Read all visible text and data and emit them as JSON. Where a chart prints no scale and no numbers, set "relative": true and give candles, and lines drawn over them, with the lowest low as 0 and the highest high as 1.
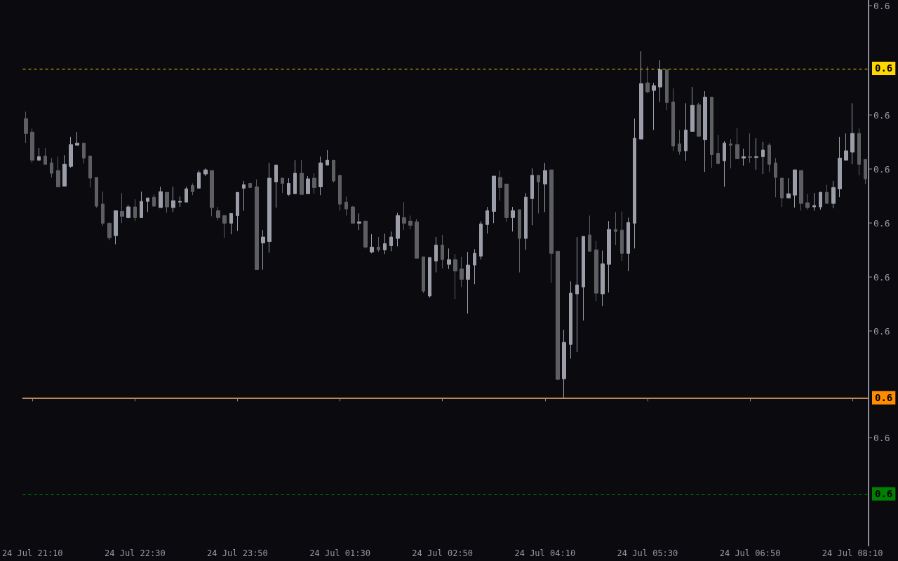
{
  "chart_data": {
    "type": "candlestick",
    "relative": true,
    "categories": [
      null,
      "24 Jul 21:10",
      null,
      null,
      null,
      null,
      null,
      null,
      null,
      null,
      null,
      null,
      null,
      null,
      null,
      null,
      null,
      "24 Jul 22:30",
      null,
      null,
      null,
      null,
      null,
      null,
      null,
      null,
      null,
      null,
      null,
      null,
      null,
      null,
      null,
      "24 Jul 23:50",
      null,
      null,
      null,
      null,
      null,
      null,
      null,
      null,
      null,
      null,
      null,
      null,
      null,
      null,
      null,
      "24 Jul 01:30",
      null,
      null,
      null,
      null,
      null,
      null,
      null,
      null,
      null,
      null,
      null,
      null,
      null,
      null,
      null,
      "24 Jul 02:50",
      null,
      null,
      null,
      null,
      null,
      null,
      null,
      null,
      null,
      null,
      null,
      null,
      null,
      null,
      null,
      "24 Jul 04:10",
      null,
      null,
      null,
      null,
      null,
      null,
      null,
      null,
      null,
      null,
      null,
      null,
      null,
      null,
      null,
      "24 Jul 05:30",
      null,
      null,
      null,
      null,
      null,
      null,
      null,
      null,
      null,
      null,
      null,
      null,
      null,
      null,
      null,
      "24 Jul 06:50",
      null,
      null,
      null,
      null,
      null,
      null,
      null,
      null,
      null,
      null,
      null,
      null,
      null,
      null,
      null,
      "24 Jul 08:10",
      null,
      null
    ],
    "ohlc": [
      [
        0.806,
        0.826,
        0.735,
        0.763
      ],
      [
        0.767,
        0.777,
        0.678,
        0.686
      ],
      [
        0.686,
        0.721,
        0.684,
        0.696
      ],
      [
        0.698,
        0.721,
        0.674,
        0.674
      ],
      [
        0.678,
        0.692,
        0.636,
        0.648
      ],
      [
        0.656,
        0.696,
        0.607,
        0.609
      ],
      [
        0.611,
        0.7,
        0.611,
        0.674
      ],
      [
        0.668,
        0.753,
        0.664,
        0.731
      ],
      [
        0.729,
        0.767,
        0.729,
        0.735
      ],
      [
        0.735,
        0.735,
        0.676,
        0.692
      ],
      [
        0.698,
        0.698,
        0.607,
        0.634
      ],
      [
        0.636,
        0.636,
        0.549,
        0.553
      ],
      [
        0.559,
        0.595,
        0.496,
        0.504
      ],
      [
        0.504,
        0.504,
        0.455,
        0.462
      ],
      [
        0.468,
        0.54,
        0.443,
        0.54
      ],
      [
        0.538,
        0.591,
        0.504,
        0.524
      ],
      [
        0.52,
        0.557,
        0.518,
        0.551
      ],
      [
        0.551,
        0.573,
        0.51,
        0.52
      ],
      [
        0.52,
        0.595,
        0.52,
        0.567
      ],
      [
        0.567,
        0.577,
        0.536,
        0.577
      ],
      [
        0.579,
        0.587,
        0.553,
        0.553
      ],
      [
        0.549,
        0.609,
        0.549,
        0.595
      ],
      [
        0.593,
        0.593,
        0.534,
        0.551
      ],
      [
        0.549,
        0.609,
        0.536,
        0.569
      ],
      [
        0.565,
        0.581,
        0.551,
        0.567
      ],
      [
        0.565,
        0.609,
        0.565,
        0.603
      ],
      [
        0.613,
        0.619,
        0.585,
        0.595
      ],
      [
        0.605,
        0.656,
        0.605,
        0.65
      ],
      [
        0.646,
        0.662,
        0.64,
        0.658
      ],
      [
        0.656,
        0.656,
        0.524,
        0.549
      ],
      [
        0.54,
        0.551,
        0.512,
        0.52
      ],
      [
        0.526,
        0.526,
        0.462,
        0.504
      ],
      [
        0.504,
        0.532,
        0.472,
        0.532
      ],
      [
        0.526,
        0.593,
        0.482,
        0.593
      ],
      [
        0.605,
        0.626,
        0.54,
        0.615
      ],
      [
        0.619,
        0.619,
        0.607,
        0.607
      ],
      [
        0.609,
        0.63,
        0.37,
        0.37
      ],
      [
        0.447,
        0.484,
        0.37,
        0.464
      ],
      [
        0.451,
        0.678,
        0.419,
        0.634
      ],
      [
        0.623,
        0.672,
        0.549,
        0.672
      ],
      [
        0.634,
        0.634,
        0.591,
        0.619
      ],
      [
        0.587,
        0.634,
        0.583,
        0.619
      ],
      [
        0.589,
        0.686,
        0.589,
        0.648
      ],
      [
        0.648,
        0.686,
        0.587,
        0.587
      ],
      [
        0.589,
        0.64,
        0.589,
        0.632
      ],
      [
        0.634,
        0.648,
        0.589,
        0.607
      ],
      [
        0.609,
        0.696,
        0.585,
        0.678
      ],
      [
        0.672,
        0.715,
        0.672,
        0.686
      ],
      [
        0.686,
        0.686,
        0.621,
        0.626
      ],
      [
        0.642,
        0.642,
        0.54,
        0.559
      ],
      [
        0.565,
        0.581,
        0.526,
        0.545
      ],
      [
        0.551,
        0.553,
        0.504,
        0.504
      ],
      [
        0.504,
        0.532,
        0.484,
        0.508
      ],
      [
        0.51,
        0.51,
        0.431,
        0.435
      ],
      [
        0.421,
        0.472,
        0.417,
        0.435
      ],
      [
        0.435,
        0.464,
        0.421,
        0.427
      ],
      [
        0.427,
        0.474,
        0.415,
        0.445
      ],
      [
        0.439,
        0.48,
        0.423,
        0.464
      ],
      [
        0.46,
        0.534,
        0.437,
        0.526
      ],
      [
        0.52,
        0.565,
        0.484,
        0.504
      ],
      [
        0.51,
        0.526,
        0.486,
        0.498
      ],
      [
        0.508,
        0.516,
        0.403,
        0.403
      ],
      [
        0.407,
        0.407,
        0.302,
        0.308
      ],
      [
        0.294,
        0.405,
        0.289,
        0.405
      ],
      [
        0.395,
        0.464,
        0.362,
        0.441
      ],
      [
        0.441,
        0.47,
        0.374,
        0.399
      ],
      [
        0.385,
        0.431,
        0.372,
        0.399
      ],
      [
        0.399,
        0.415,
        0.285,
        0.366
      ],
      [
        0.372,
        0.407,
        0.32,
        0.342
      ],
      [
        0.342,
        0.421,
        0.243,
        0.383
      ],
      [
        0.383,
        0.429,
        0.328,
        0.417
      ],
      [
        0.409,
        0.51,
        0.399,
        0.502
      ],
      [
        0.5,
        0.551,
        0.474,
        0.54
      ],
      [
        0.538,
        0.64,
        0.504,
        0.64
      ],
      [
        0.636,
        0.656,
        0.569,
        0.607
      ],
      [
        0.617,
        0.617,
        0.508,
        0.52
      ],
      [
        0.52,
        0.551,
        0.48,
        0.54
      ],
      [
        0.543,
        0.543,
        0.362,
        0.46
      ],
      [
        0.46,
        0.591,
        0.427,
        0.579
      ],
      [
        0.575,
        0.662,
        0.498,
        0.642
      ],
      [
        0.642,
        0.642,
        0.532,
        0.623
      ],
      [
        0.617,
        0.678,
        0.536,
        0.656
      ],
      [
        0.658,
        0.658,
        0.332,
        0.417
      ],
      [
        0.423,
        0.423,
        0.051,
        0.053
      ],
      [
        0.055,
        0.196,
        0,
        0.16
      ],
      [
        0.154,
        0.336,
        0.113,
        0.302
      ],
      [
        0.3,
        0.464,
        0.132,
        0.326
      ],
      [
        0.32,
        0.466,
        0.223,
        0.466
      ],
      [
        0.47,
        0.526,
        0.423,
        0.423
      ],
      [
        0.427,
        0.453,
        0.279,
        0.302
      ],
      [
        0.3,
        0.425,
        0.265,
        0.387
      ],
      [
        0.385,
        0.51,
        0.304,
        0.486
      ],
      [
        0.486,
        0.536,
        0.441,
        0.48
      ],
      [
        0.484,
        0.538,
        0.395,
        0.417
      ],
      [
        0.417,
        0.52,
        0.366,
        0.506
      ],
      [
        0.504,
        0.806,
        0.431,
        0.749
      ],
      [
        0.747,
        1,
        0.747,
        0.907
      ],
      [
        0.909,
        0.957,
        0.879,
        0.883
      ],
      [
        0.887,
        0.909,
        0.773,
        0.901
      ],
      [
        0.897,
        0.974,
        0.854,
        0.947
      ],
      [
        0.947,
        0.947,
        0.83,
        0.852
      ],
      [
        0.854,
        0.893,
        0.713,
        0.727
      ],
      [
        0.733,
        0.773,
        0.702,
        0.711
      ],
      [
        0.713,
        0.85,
        0.684,
        0.773
      ],
      [
        0.769,
        0.897,
        0.769,
        0.844
      ],
      [
        0.846,
        0.852,
        0.755,
        0.755
      ],
      [
        0.745,
        0.885,
        0.652,
        0.868
      ],
      [
        0.868,
        0.868,
        0.664,
        0.702
      ],
      [
        0.706,
        0.759,
        0.674,
        0.676
      ],
      [
        0.684,
        0.741,
        0.609,
        0.735
      ],
      [
        0.733,
        0.747,
        0.662,
        0.729
      ],
      [
        0.731,
        0.779,
        0.69,
        0.69
      ],
      [
        0.692,
        0.719,
        0.67,
        0.696
      ],
      [
        0.696,
        0.763,
        0.678,
        0.694
      ],
      [
        0.694,
        0.749,
        0.658,
        0.696
      ],
      [
        0.696,
        0.739,
        0.646,
        0.715
      ],
      [
        0.729,
        0.735,
        0.652,
        0.674
      ],
      [
        0.678,
        0.692,
        0.579,
        0.636
      ],
      [
        0.634,
        0.634,
        0.551,
        0.577
      ],
      [
        0.577,
        0.634,
        0.577,
        0.589
      ],
      [
        0.585,
        0.658,
        0.549,
        0.658
      ],
      [
        0.656,
        0.656,
        0.54,
        0.561
      ],
      [
        0.563,
        0.589,
        0.543,
        0.549
      ],
      [
        0.551,
        0.591,
        0.54,
        0.555
      ],
      [
        0.551,
        0.595,
        0.543,
        0.593
      ],
      [
        0.593,
        0.615,
        0.561,
        0.561
      ],
      [
        0.561,
        0.626,
        0.547,
        0.607
      ],
      [
        0.603,
        0.753,
        0.579,
        0.692
      ],
      [
        0.686,
        0.763,
        0.686,
        0.713
      ],
      [
        0.709,
        0.85,
        0.674,
        0.763
      ],
      [
        0.763,
        0.777,
        0.642,
        0.674
      ],
      [
        0.688,
        0.688,
        0.617,
        0.632
      ]
    ],
    "colors": [
      "#5e5f63",
      "#5e5f63",
      "#9b9ea9",
      "#5e5f63",
      "#5e5f63",
      "#5e5f63",
      "#9b9ea9",
      "#9b9ea9",
      "#9b9ea9",
      "#5e5f63",
      "#5e5f63",
      "#5e5f63",
      "#5e5f63",
      "#5e5f63",
      "#9b9ea9",
      "#5e5f63",
      "#9b9ea9",
      "#5e5f63",
      "#9b9ea9",
      "#9b9ea9",
      "#5e5f63",
      "#9b9ea9",
      "#5e5f63",
      "#9b9ea9",
      "#9b9ea9",
      "#9b9ea9",
      "#5e5f63",
      "#9b9ea9",
      "#9b9ea9",
      "#5e5f63",
      "#5e5f63",
      "#5e5f63",
      "#9b9ea9",
      "#9b9ea9",
      "#9b9ea9",
      "#5e5f63",
      "#5e5f63",
      "#9b9ea9",
      "#9b9ea9",
      "#9b9ea9",
      "#5e5f63",
      "#9b9ea9",
      "#9b9ea9",
      "#5e5f63",
      "#9b9ea9",
      "#5e5f63",
      "#9b9ea9",
      "#9b9ea9",
      "#5e5f63",
      "#5e5f63",
      "#5e5f63",
      "#5e5f63",
      "#9b9ea9",
      "#5e5f63",
      "#9b9ea9",
      "#5e5f63",
      "#9b9ea9",
      "#9b9ea9",
      "#9b9ea9",
      "#5e5f63",
      "#5e5f63",
      "#5e5f63",
      "#5e5f63",
      "#9b9ea9",
      "#9b9ea9",
      "#5e5f63",
      "#9b9ea9",
      "#5e5f63",
      "#5e5f63",
      "#9b9ea9",
      "#9b9ea9",
      "#9b9ea9",
      "#9b9ea9",
      "#9b9ea9",
      "#5e5f63",
      "#5e5f63",
      "#9b9ea9",
      "#5e5f63",
      "#9b9ea9",
      "#9b9ea9",
      "#5e5f63",
      "#9b9ea9",
      "#5e5f63",
      "#5e5f63",
      "#9b9ea9",
      "#9b9ea9",
      "#9b9ea9",
      "#9b9ea9",
      "#5e5f63",
      "#5e5f63",
      "#9b9ea9",
      "#9b9ea9",
      "#5e5f63",
      "#5e5f63",
      "#9b9ea9",
      "#9b9ea9",
      "#9b9ea9",
      "#5e5f63",
      "#9b9ea9",
      "#9b9ea9",
      "#5e5f63",
      "#5e5f63",
      "#5e5f63",
      "#9b9ea9",
      "#9b9ea9",
      "#5e5f63",
      "#9b9ea9",
      "#5e5f63",
      "#5e5f63",
      "#9b9ea9",
      "#5e5f63",
      "#5e5f63",
      "#9b9ea9",
      "#5e5f63",
      "#9b9ea9",
      "#9b9ea9",
      "#5e5f63",
      "#5e5f63",
      "#5e5f63",
      "#9b9ea9",
      "#9b9ea9",
      "#5e5f63",
      "#5e5f63",
      "#9b9ea9",
      "#9b9ea9",
      "#5e5f63",
      "#9b9ea9",
      "#9b9ea9",
      "#9b9ea9",
      "#9b9ea9",
      "#5e5f63",
      "#5e5f63"
    ],
    "annotations": [
      "0.6",
      "0.6",
      "0.6",
      "0.6",
      "0.6",
      "0.6",
      "0.6",
      "0.6",
      "0.6",
      "0.6"
    ],
    "ref_lines": [
      {
        "axis": "y",
        "value": 0.951,
        "color": "#ffd700",
        "line_style": "dashed"
      },
      {
        "axis": "y",
        "value": 0,
        "color": "#ff8c00",
        "line_style": "solid"
      },
      {
        "axis": "y",
        "value": -0.277,
        "color": "#008000",
        "line_style": "dashed"
      }
    ],
    "grid": false
  }
}
